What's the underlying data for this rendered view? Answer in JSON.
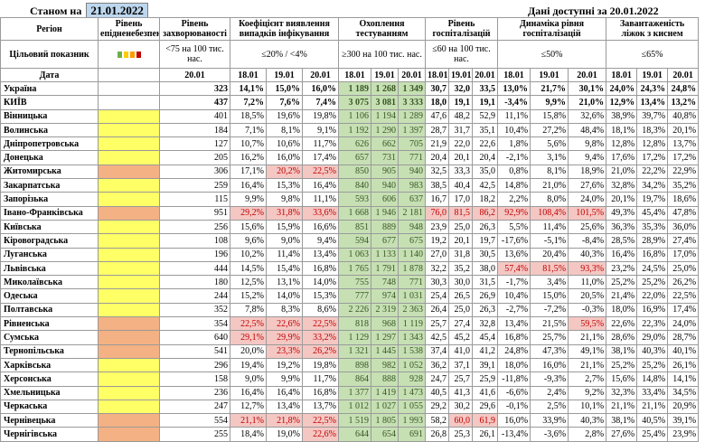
{
  "header": {
    "as_of_label": "Станом на",
    "as_of_date": "21.01.2022",
    "data_available_label": "Дані доступні за",
    "data_available_date": "20.01.2022"
  },
  "columns": {
    "region": "Регіон",
    "readiness": "Рівень епідненебезпеки",
    "morbidity": "Рівень захворюваності",
    "detection": "Коефіцієнт виявлення випадків інфікування",
    "testing": "Охоплення тестуванням",
    "hosp": "Рівень госпіталізацій",
    "hosp_dynamics": "Динаміка рівня госпіталізацій",
    "oxygen": "Завантаженість ліжок з киснем"
  },
  "targets": {
    "label": "Цільовий показник",
    "morbidity": "<75 на 100 тис. нас.",
    "detection": "≤20% / <4%",
    "testing": "≥300 на 100 тис. нас.",
    "hosp": "≤60 на 100 тис. нас.",
    "hosp_dynamics": "≤50%",
    "oxygen": "≤65%"
  },
  "dates": {
    "label": "Дата",
    "morbidity": "20.01",
    "detection": [
      "18.01",
      "19.01",
      "20.01"
    ],
    "testing": [
      "18.01",
      "19.01",
      "20.01"
    ],
    "hosp": [
      "18.01",
      "19.01",
      "20.01"
    ],
    "hosp_dynamics": [
      "18.01",
      "19.01",
      "20.01"
    ],
    "oxygen": [
      "18.01",
      "19.01",
      "20.01"
    ]
  },
  "colors": {
    "yellow": "#ffff66",
    "orange": "#f4b183",
    "green": "#c6e0b4",
    "red": "#f4c7c3",
    "light_red": "#c00000",
    "light_orange": "#ff9900",
    "light_yellow": "#ffcc00",
    "light_green": "#70ad47"
  },
  "rows": [
    {
      "region": "Україна",
      "zone": "",
      "m": "323",
      "d": [
        "14,1%",
        "15,0%",
        "16,0%"
      ],
      "t": [
        "1 189",
        "1 268",
        "1 349"
      ],
      "h": [
        "30,7",
        "32,0",
        "33,5"
      ],
      "hd": [
        "13,0%",
        "21,7%",
        "30,1%"
      ],
      "o": [
        "24,0%",
        "24,3%",
        "24,8%"
      ],
      "dc": "",
      "tc": "g",
      "hc": "",
      "hdc": "",
      "oc": ""
    },
    {
      "region": "КИЇВ",
      "zone": "",
      "m": "437",
      "d": [
        "7,2%",
        "7,6%",
        "7,4%"
      ],
      "t": [
        "3 075",
        "3 081",
        "3 333"
      ],
      "h": [
        "18,0",
        "19,1",
        "19,1"
      ],
      "hd": [
        "-3,4%",
        "9,9%",
        "21,0%"
      ],
      "o": [
        "12,9%",
        "13,4%",
        "13,2%"
      ],
      "dc": "",
      "tc": "g",
      "hc": "",
      "hdc": "",
      "oc": ""
    },
    {
      "region": "Вінницька",
      "zone": "y",
      "m": "401",
      "d": [
        "18,5%",
        "19,6%",
        "19,8%"
      ],
      "t": [
        "1 106",
        "1 194",
        "1 289"
      ],
      "h": [
        "47,6",
        "48,2",
        "52,9"
      ],
      "hd": [
        "11,1%",
        "15,8%",
        "32,6%"
      ],
      "o": [
        "38,9%",
        "39,7%",
        "40,8%"
      ],
      "dc": "",
      "tc": "g",
      "hc": "",
      "hdc": "",
      "oc": ""
    },
    {
      "region": "Волинська",
      "zone": "y",
      "m": "184",
      "d": [
        "7,1%",
        "8,1%",
        "9,1%"
      ],
      "t": [
        "1 192",
        "1 290",
        "1 397"
      ],
      "h": [
        "28,7",
        "31,7",
        "35,1"
      ],
      "hd": [
        "10,4%",
        "27,2%",
        "48,4%"
      ],
      "o": [
        "18,1%",
        "18,3%",
        "20,1%"
      ],
      "dc": "",
      "tc": "g",
      "hc": "",
      "hdc": "",
      "oc": ""
    },
    {
      "region": "Дніпропетровська",
      "zone": "y",
      "m": "127",
      "d": [
        "10,7%",
        "10,6%",
        "11,7%"
      ],
      "t": [
        "626",
        "662",
        "705"
      ],
      "h": [
        "21,9",
        "22,0",
        "22,6"
      ],
      "hd": [
        "1,8%",
        "5,6%",
        "9,8%"
      ],
      "o": [
        "12,8%",
        "12,8%",
        "13,7%"
      ],
      "dc": "",
      "tc": "g",
      "hc": "",
      "hdc": "",
      "oc": ""
    },
    {
      "region": "Донецька",
      "zone": "y",
      "m": "205",
      "d": [
        "16,2%",
        "16,0%",
        "17,4%"
      ],
      "t": [
        "657",
        "731",
        "771"
      ],
      "h": [
        "20,4",
        "20,1",
        "20,4"
      ],
      "hd": [
        "-2,1%",
        "3,1%",
        "9,4%"
      ],
      "o": [
        "17,6%",
        "17,2%",
        "17,2%"
      ],
      "dc": "",
      "tc": "g",
      "hc": "",
      "hdc": "",
      "oc": ""
    },
    {
      "region": "Житомирська",
      "zone": "o",
      "m": "306",
      "d": [
        "17,1%",
        "20,2%",
        "22,5%"
      ],
      "t": [
        "850",
        "905",
        "940"
      ],
      "h": [
        "32,5",
        "33,3",
        "35,0"
      ],
      "hd": [
        "0,8%",
        "8,1%",
        "18,9%"
      ],
      "o": [
        "21,0%",
        "22,2%",
        "22,9%"
      ],
      "dc": "r2",
      "tc": "g",
      "hc": "",
      "hdc": "",
      "oc": ""
    },
    {
      "region": "Закарпатська",
      "zone": "y",
      "m": "259",
      "d": [
        "16,4%",
        "15,3%",
        "16,4%"
      ],
      "t": [
        "840",
        "940",
        "983"
      ],
      "h": [
        "38,5",
        "40,4",
        "42,5"
      ],
      "hd": [
        "14,8%",
        "21,0%",
        "27,6%"
      ],
      "o": [
        "32,8%",
        "34,2%",
        "35,2%"
      ],
      "dc": "",
      "tc": "g",
      "hc": "",
      "hdc": "",
      "oc": ""
    },
    {
      "region": "Запорізька",
      "zone": "y",
      "m": "115",
      "d": [
        "9,9%",
        "9,8%",
        "11,1%"
      ],
      "t": [
        "593",
        "606",
        "637"
      ],
      "h": [
        "16,7",
        "17,0",
        "18,2"
      ],
      "hd": [
        "2,2%",
        "8,0%",
        "24,0%"
      ],
      "o": [
        "20,1%",
        "19,7%",
        "18,6%"
      ],
      "dc": "",
      "tc": "g",
      "hc": "",
      "hdc": "",
      "oc": ""
    },
    {
      "region": "Івано-Франківська",
      "zone": "o",
      "m": "951",
      "d": [
        "29,2%",
        "31,8%",
        "33,6%"
      ],
      "t": [
        "1 668",
        "1 946",
        "2 181"
      ],
      "h": [
        "76,0",
        "81,5",
        "86,2"
      ],
      "hd": [
        "92,9%",
        "108,4%",
        "101,5%"
      ],
      "o": [
        "49,3%",
        "45,4%",
        "47,8%"
      ],
      "dc": "r",
      "tc": "g",
      "hc": "r",
      "hdc": "r",
      "oc": ""
    },
    {
      "region": "Київська",
      "zone": "y",
      "m": "256",
      "d": [
        "15,6%",
        "15,9%",
        "16,6%"
      ],
      "t": [
        "851",
        "889",
        "948"
      ],
      "h": [
        "23,9",
        "25,0",
        "26,3"
      ],
      "hd": [
        "5,5%",
        "11,4%",
        "25,6%"
      ],
      "o": [
        "36,3%",
        "35,3%",
        "36,0%"
      ],
      "dc": "",
      "tc": "g",
      "hc": "",
      "hdc": "",
      "oc": ""
    },
    {
      "region": "Кіровоградська",
      "zone": "y",
      "m": "108",
      "d": [
        "9,6%",
        "9,0%",
        "9,4%"
      ],
      "t": [
        "594",
        "677",
        "675"
      ],
      "h": [
        "19,2",
        "20,1",
        "19,7"
      ],
      "hd": [
        "-17,6%",
        "-5,1%",
        "-8,4%"
      ],
      "o": [
        "28,5%",
        "28,9%",
        "27,4%"
      ],
      "dc": "",
      "tc": "g",
      "hc": "",
      "hdc": "",
      "oc": ""
    },
    {
      "region": "Луганська",
      "zone": "y",
      "m": "196",
      "d": [
        "10,2%",
        "11,4%",
        "13,4%"
      ],
      "t": [
        "1 063",
        "1 133",
        "1 140"
      ],
      "h": [
        "27,0",
        "31,8",
        "30,5"
      ],
      "hd": [
        "13,6%",
        "20,4%",
        "40,3%"
      ],
      "o": [
        "16,4%",
        "16,8%",
        "17,0%"
      ],
      "dc": "",
      "tc": "g",
      "hc": "",
      "hdc": "",
      "oc": ""
    },
    {
      "region": "Львівська",
      "zone": "y",
      "m": "444",
      "d": [
        "14,5%",
        "15,4%",
        "16,8%"
      ],
      "t": [
        "1 765",
        "1 791",
        "1 878"
      ],
      "h": [
        "32,2",
        "35,2",
        "38,0"
      ],
      "hd": [
        "57,4%",
        "81,5%",
        "93,3%"
      ],
      "o": [
        "23,2%",
        "24,5%",
        "25,0%"
      ],
      "dc": "",
      "tc": "g",
      "hc": "",
      "hdc": "r",
      "oc": ""
    },
    {
      "region": "Миколаївська",
      "zone": "y",
      "m": "180",
      "d": [
        "12,5%",
        "13,1%",
        "14,0%"
      ],
      "t": [
        "755",
        "748",
        "771"
      ],
      "h": [
        "30,3",
        "30,0",
        "31,5"
      ],
      "hd": [
        "-1,7%",
        "3,4%",
        "11,0%"
      ],
      "o": [
        "25,2%",
        "25,2%",
        "26,2%"
      ],
      "dc": "",
      "tc": "g",
      "hc": "",
      "hdc": "",
      "oc": ""
    },
    {
      "region": "Одеська",
      "zone": "y",
      "m": "244",
      "d": [
        "15,2%",
        "14,0%",
        "15,3%"
      ],
      "t": [
        "777",
        "974",
        "1 031"
      ],
      "h": [
        "25,4",
        "26,5",
        "26,9"
      ],
      "hd": [
        "10,4%",
        "15,0%",
        "20,5%"
      ],
      "o": [
        "21,4%",
        "22,0%",
        "22,5%"
      ],
      "dc": "",
      "tc": "g",
      "hc": "",
      "hdc": "",
      "oc": ""
    },
    {
      "region": "Полтавська",
      "zone": "y",
      "m": "352",
      "d": [
        "7,8%",
        "8,3%",
        "8,6%"
      ],
      "t": [
        "2 226",
        "2 319",
        "2 363"
      ],
      "h": [
        "26,4",
        "25,0",
        "26,3"
      ],
      "hd": [
        "-2,7%",
        "-7,2%",
        "-0,3%"
      ],
      "o": [
        "18,0%",
        "16,9%",
        "17,4%"
      ],
      "dc": "",
      "tc": "g",
      "hc": "",
      "hdc": "",
      "oc": ""
    },
    {
      "region": "Рівненська",
      "zone": "o",
      "m": "354",
      "d": [
        "22,5%",
        "22,6%",
        "22,5%"
      ],
      "t": [
        "818",
        "968",
        "1 119"
      ],
      "h": [
        "25,7",
        "27,4",
        "32,8"
      ],
      "hd": [
        "13,4%",
        "21,5%",
        "59,5%"
      ],
      "o": [
        "22,6%",
        "22,3%",
        "24,0%"
      ],
      "dc": "r",
      "tc": "g",
      "hc": "",
      "hdc": "r3",
      "oc": ""
    },
    {
      "region": "Сумська",
      "zone": "o",
      "m": "640",
      "d": [
        "29,1%",
        "29,9%",
        "33,2%"
      ],
      "t": [
        "1 129",
        "1 297",
        "1 343"
      ],
      "h": [
        "42,5",
        "45,2",
        "45,4"
      ],
      "hd": [
        "16,8%",
        "25,7%",
        "21,1%"
      ],
      "o": [
        "28,6%",
        "29,0%",
        "28,7%"
      ],
      "dc": "r",
      "tc": "g",
      "hc": "",
      "hdc": "",
      "oc": ""
    },
    {
      "region": "Тернопільська",
      "zone": "o",
      "m": "541",
      "d": [
        "20,0%",
        "23,3%",
        "26,2%"
      ],
      "t": [
        "1 321",
        "1 445",
        "1 538"
      ],
      "h": [
        "37,4",
        "41,0",
        "41,2"
      ],
      "hd": [
        "24,8%",
        "47,3%",
        "49,1%"
      ],
      "o": [
        "38,1%",
        "40,3%",
        "40,1%"
      ],
      "dc": "r2",
      "tc": "g",
      "hc": "",
      "hdc": "",
      "oc": ""
    },
    {
      "region": "Харківська",
      "zone": "y",
      "m": "296",
      "d": [
        "19,4%",
        "19,2%",
        "19,8%"
      ],
      "t": [
        "898",
        "982",
        "1 052"
      ],
      "h": [
        "36,2",
        "37,1",
        "39,1"
      ],
      "hd": [
        "18,0%",
        "16,0%",
        "21,1%"
      ],
      "o": [
        "25,2%",
        "25,2%",
        "26,1%"
      ],
      "dc": "",
      "tc": "g",
      "hc": "",
      "hdc": "",
      "oc": ""
    },
    {
      "region": "Херсонська",
      "zone": "y",
      "m": "158",
      "d": [
        "9,0%",
        "9,9%",
        "11,7%"
      ],
      "t": [
        "864",
        "888",
        "928"
      ],
      "h": [
        "24,7",
        "25,7",
        "25,9"
      ],
      "hd": [
        "-11,8%",
        "-9,3%",
        "2,7%"
      ],
      "o": [
        "15,6%",
        "14,8%",
        "14,1%"
      ],
      "dc": "",
      "tc": "g",
      "hc": "",
      "hdc": "",
      "oc": ""
    },
    {
      "region": "Хмельницька",
      "zone": "y",
      "m": "236",
      "d": [
        "16,4%",
        "16,4%",
        "16,8%"
      ],
      "t": [
        "1 377",
        "1 419",
        "1 473"
      ],
      "h": [
        "40,5",
        "41,3",
        "41,6"
      ],
      "hd": [
        "-6,6%",
        "2,4%",
        "9,2%"
      ],
      "o": [
        "32,3%",
        "33,4%",
        "34,5%"
      ],
      "dc": "",
      "tc": "g",
      "hc": "",
      "hdc": "",
      "oc": ""
    },
    {
      "region": "Черкаська",
      "zone": "y",
      "m": "247",
      "d": [
        "12,7%",
        "13,4%",
        "13,7%"
      ],
      "t": [
        "1 012",
        "1 027",
        "1 055"
      ],
      "h": [
        "29,2",
        "30,2",
        "29,6"
      ],
      "hd": [
        "-0,1%",
        "2,5%",
        "10,1%"
      ],
      "o": [
        "21,1%",
        "21,1%",
        "20,9%"
      ],
      "dc": "",
      "tc": "g",
      "hc": "",
      "hdc": "",
      "oc": ""
    },
    {
      "region": "Чернівецька",
      "zone": "o",
      "m": "554",
      "d": [
        "21,1%",
        "21,8%",
        "22,5%"
      ],
      "t": [
        "1 519",
        "1 805",
        "1 993"
      ],
      "h": [
        "58,2",
        "60,0",
        "61,9"
      ],
      "hd": [
        "16,0%",
        "33,9%",
        "40,3%"
      ],
      "o": [
        "38,1%",
        "40,5%",
        "39,1%"
      ],
      "dc": "r",
      "tc": "g",
      "hc": "r2",
      "hdc": "",
      "oc": ""
    },
    {
      "region": "Чернігівська",
      "zone": "o",
      "m": "255",
      "d": [
        "18,4%",
        "19,0%",
        "22,6%"
      ],
      "t": [
        "644",
        "654",
        "691"
      ],
      "h": [
        "26,8",
        "25,3",
        "26,1"
      ],
      "hd": [
        "-13,4%",
        "-3,6%",
        "2,8%"
      ],
      "o": [
        "27,6%",
        "25,4%",
        "23,9%"
      ],
      "dc": "r3",
      "tc": "g",
      "hc": "",
      "hdc": "",
      "oc": ""
    }
  ]
}
